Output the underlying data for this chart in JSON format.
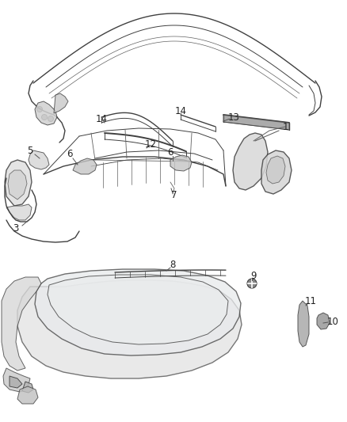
{
  "bg_color": "#ffffff",
  "fig_width": 4.38,
  "fig_height": 5.33,
  "dpi": 100,
  "image_data": ""
}
